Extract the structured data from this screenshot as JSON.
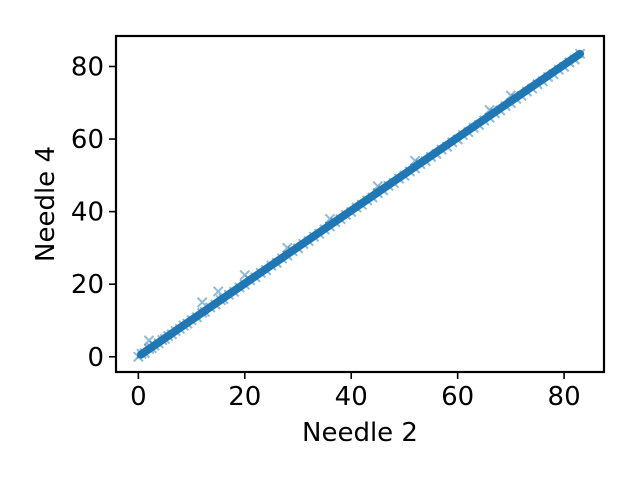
{
  "chart_data": {
    "type": "scatter",
    "title": "",
    "xlabel": "Needle 2",
    "ylabel": "Needle 4",
    "xlim": [
      -4.2,
      87.5
    ],
    "ylim": [
      -4.2,
      88.4
    ],
    "xticks": [
      0,
      20,
      40,
      60,
      80
    ],
    "yticks": [
      0,
      20,
      40,
      60,
      80
    ],
    "xtick_labels": [
      "0",
      "20",
      "40",
      "60",
      "80"
    ],
    "ytick_labels": [
      "0",
      "20",
      "40",
      "60",
      "80"
    ],
    "grid": false,
    "marker": "x",
    "color": "#1f77b4",
    "series": [
      {
        "x": [
          0,
          0.6,
          1.2,
          2.0,
          2.5,
          3.0,
          3.8,
          4.5,
          5.0,
          5.6,
          6.3,
          7.0,
          7.8,
          8.5,
          9.2,
          10.0,
          11.0,
          12.0,
          12.5,
          13.5,
          14.5,
          15.5,
          16.0,
          17.0,
          18.0,
          19.0,
          20.0,
          21.0,
          22.0,
          23.0,
          24.0,
          25.0,
          26.0,
          27.0,
          28.0,
          29.0,
          30.0,
          31.0,
          32.0,
          33.0,
          34.0,
          35.0,
          36.0,
          37.0,
          38.0,
          39.0,
          40.0,
          41.0,
          42.0,
          43.0,
          44.0,
          45.0,
          46.0,
          47.0,
          48.0,
          49.0,
          50.0,
          51.0,
          52.0,
          53.0,
          54.0,
          55.0,
          56.0,
          57.0,
          58.0,
          59.0,
          60.0,
          61.0,
          62.0,
          63.0,
          64.0,
          65.0,
          66.0,
          67.0,
          68.0,
          69.0,
          70.0,
          71.0,
          72.0,
          73.0,
          74.0,
          75.0,
          76.0,
          77.0,
          78.0,
          79.0,
          80.0,
          81.0,
          82.0,
          83.0,
          2.0,
          12.0,
          15.0,
          20.0,
          28.0,
          36.0,
          45.0,
          52.0,
          66.0,
          70.0
        ],
        "y": [
          0,
          0.8,
          1.0,
          2.2,
          2.4,
          3.1,
          3.7,
          4.6,
          4.9,
          5.7,
          6.2,
          7.1,
          7.7,
          8.6,
          9.1,
          10.1,
          10.9,
          12.1,
          12.4,
          13.6,
          14.4,
          15.6,
          15.9,
          17.1,
          17.9,
          19.1,
          19.9,
          21.1,
          21.9,
          23.1,
          23.9,
          25.1,
          25.9,
          27.1,
          27.9,
          29.1,
          29.9,
          31.1,
          31.9,
          33.1,
          33.9,
          35.1,
          35.9,
          37.1,
          37.9,
          39.1,
          39.9,
          41.1,
          41.9,
          43.1,
          43.9,
          45.1,
          45.9,
          47.1,
          47.9,
          49.1,
          49.9,
          51.1,
          51.9,
          53.1,
          53.9,
          55.1,
          55.9,
          57.1,
          57.9,
          59.1,
          59.9,
          61.1,
          61.9,
          63.1,
          63.9,
          65.1,
          65.9,
          67.1,
          67.9,
          69.1,
          69.9,
          71.1,
          71.9,
          73.1,
          73.9,
          75.1,
          75.9,
          77.1,
          77.9,
          79.1,
          79.9,
          81.1,
          81.9,
          83.5,
          4.5,
          15.0,
          18.0,
          22.5,
          30.0,
          38.0,
          47.0,
          54.0,
          68.0,
          72.0
        ]
      }
    ]
  }
}
